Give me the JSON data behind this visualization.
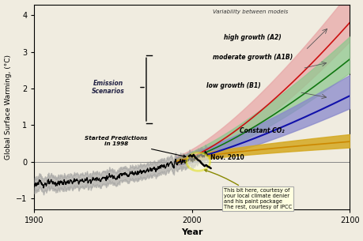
{
  "xlabel": "Year",
  "ylabel": "Global Surface Warming, (°C)",
  "xlim": [
    1900,
    2100
  ],
  "ylim": [
    -1.3,
    4.3
  ],
  "yticks": [
    -1,
    0,
    1,
    2,
    3,
    4
  ],
  "xticks": [
    1900,
    2000,
    2100
  ],
  "bg_color": "#f0ece0",
  "annotation_text": "This bit here, courtesy of\nyour local climate denier\nand his paint package\nThe rest, courtesy of IPCC",
  "label_variability": "Variability between models",
  "label_high": "high growth (A2)",
  "label_moderate": "moderate growth (A1B)",
  "label_low": "low growth (B1)",
  "label_constant": "Constant CO₂",
  "label_started": "Started Predictions\nin 1998",
  "label_nov2010": "Nov. 2010",
  "label_emission": "Emission\nScenarios"
}
